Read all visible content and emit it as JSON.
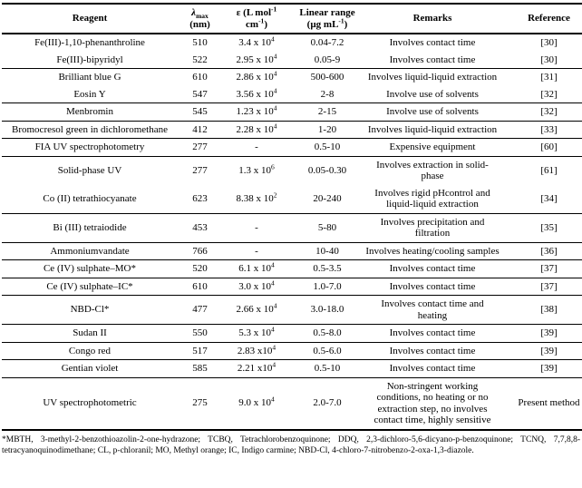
{
  "table": {
    "headers": {
      "reagent": "Reagent",
      "lambda": {
        "symbol": "λ",
        "sub": "max",
        "unit": "(nm)"
      },
      "epsilon": {
        "l1base": "ε (L mol",
        "l1exp": "-1",
        "l2base": "cm",
        "l2exp": "-1",
        "l2close": ")"
      },
      "linear": {
        "l1": "Linear range",
        "l2base": "(µg mL",
        "l2exp": "-1",
        "l2close": ")"
      },
      "remarks": "Remarks",
      "reference": "Reference"
    },
    "rows": [
      {
        "reagent": "Fe(III)-1,10-phenanthroline",
        "lambda": "510",
        "eps": "3.4 x 10",
        "eps_exp": "4",
        "range": "0.04-7.2",
        "remarks": "Involves contact time",
        "ref": "[30]"
      },
      {
        "reagent": "Fe(III)-bipyridyl",
        "lambda": "522",
        "eps": "2.95 x 10",
        "eps_exp": "4",
        "range": "0.05-9",
        "remarks": "Involves contact time",
        "ref": "[30]"
      },
      {
        "reagent": "Brilliant blue G",
        "lambda": "610",
        "eps": "2.86 x 10",
        "eps_exp": "4",
        "range": "500-600",
        "remarks": "Involves liquid-liquid extraction",
        "ref": "[31]"
      },
      {
        "reagent": "Eosin Y",
        "lambda": "547",
        "eps": "3.56 x 10",
        "eps_exp": "4",
        "range": "2-8",
        "remarks": "Involve use of solvents",
        "ref": "[32]"
      },
      {
        "reagent": "Menbromin",
        "lambda": "545",
        "eps": "1.23 x 10",
        "eps_exp": "4",
        "range": "2-15",
        "remarks": "Involve use of solvents",
        "ref": "[32]"
      },
      {
        "reagent": "Bromocresol green in dichloromethane",
        "lambda": "412",
        "eps": "2.28 x 10",
        "eps_exp": "4",
        "range": "1-20",
        "remarks": "Involves liquid-liquid extraction",
        "ref": "[33]"
      },
      {
        "reagent": "FIA UV spectrophotometry",
        "lambda": "277",
        "eps": "-",
        "eps_exp": "",
        "range": "0.5-10",
        "remarks": "Expensive equipment",
        "ref": "[60]"
      },
      {
        "reagent": "Solid-phase UV",
        "lambda": "277",
        "eps": "1.3 x 10",
        "eps_exp": "6",
        "range": "0.05-0.30",
        "remarks": "Involves extraction in solid-phase",
        "ref": "[61]"
      },
      {
        "reagent": "Co (II) tetrathiocyanate",
        "lambda": "623",
        "eps": "8.38 x 10",
        "eps_exp": "2",
        "range": "20-240",
        "remarks": "Involves rigid pHcontrol and liquid-liquid extraction",
        "ref": "[34]"
      },
      {
        "reagent": "Bi (III) tetraiodide",
        "lambda": "453",
        "eps": "-",
        "eps_exp": "",
        "range": "5-80",
        "remarks": "Involves precipitation and filtration",
        "ref": "[35]"
      },
      {
        "reagent": "Ammoniumvandate",
        "lambda": "766",
        "eps": "-",
        "eps_exp": "",
        "range": "10-40",
        "remarks": "Involves heating/cooling samples",
        "ref": "[36]"
      },
      {
        "reagent": "Ce (IV) sulphate–MO*",
        "lambda": "520",
        "eps": "6.1 x 10",
        "eps_exp": "4",
        "range": "0.5-3.5",
        "remarks": "Involves contact time",
        "ref": "[37]"
      },
      {
        "reagent": "Ce (IV) sulphate–IC*",
        "lambda": "610",
        "eps": "3.0 x 10",
        "eps_exp": "4",
        "range": "1.0-7.0",
        "remarks": "Involves contact time",
        "ref": "[37]"
      },
      {
        "reagent": "NBD-Cl*",
        "lambda": "477",
        "eps": "2.66 x 10",
        "eps_exp": "4",
        "range": "3.0-18.0",
        "remarks": "Involves contact time and heating",
        "ref": "[38]"
      },
      {
        "reagent": "Sudan II",
        "lambda": "550",
        "eps": "5.3 x 10",
        "eps_exp": "4",
        "range": "0.5-8.0",
        "remarks": "Involves contact time",
        "ref": "[39]"
      },
      {
        "reagent": "Congo red",
        "lambda": "517",
        "eps": "2.83 x10",
        "eps_exp": "4",
        "range": "0.5-6.0",
        "remarks": "Involves contact time",
        "ref": "[39]"
      },
      {
        "reagent": "Gentian violet",
        "lambda": "585",
        "eps": "2.21 x10",
        "eps_exp": "4",
        "range": "0.5-10",
        "remarks": "Involves contact time",
        "ref": "[39]"
      },
      {
        "reagent": "UV spectrophotometric",
        "lambda": "275",
        "eps": "9.0 x 10",
        "eps_exp": "4",
        "range": "2.0-7.0",
        "remarks": "Non-stringent working conditions, no heating or no extraction step, no involves contact time, highly sensitive",
        "ref": "Present method"
      }
    ]
  },
  "footnote": "*MBTH, 3-methyl-2-benzothioazolin-2-one-hydrazone; TCBQ, Tetrachlorobenzoquinone; DDQ, 2,3-dichloro-5,6-dicyano-p-benzoquinone; TCNQ, 7,7,8,8-tetracyanoquinodimethane; CL, p-chloranil; MO, Methyl orange; IC, Indigo carmine; NBD-Cl, 4-chloro-7-nitrobenzo-2-oxa-1,3-diazole."
}
